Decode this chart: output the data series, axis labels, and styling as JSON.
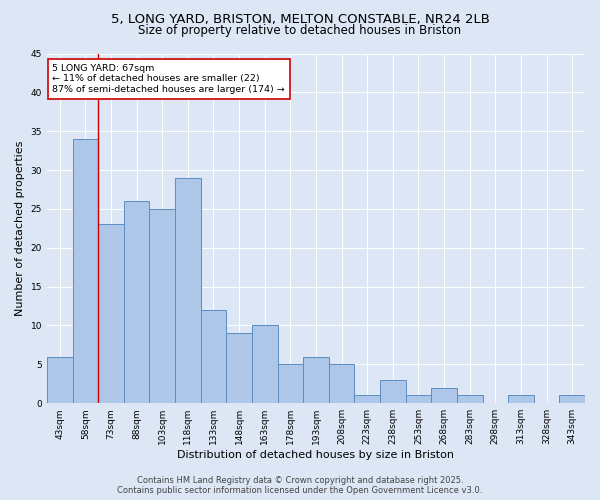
{
  "title_line1": "5, LONG YARD, BRISTON, MELTON CONSTABLE, NR24 2LB",
  "title_line2": "Size of property relative to detached houses in Briston",
  "xlabel": "Distribution of detached houses by size in Briston",
  "ylabel": "Number of detached properties",
  "categories": [
    "43sqm",
    "58sqm",
    "73sqm",
    "88sqm",
    "103sqm",
    "118sqm",
    "133sqm",
    "148sqm",
    "163sqm",
    "178sqm",
    "193sqm",
    "208sqm",
    "223sqm",
    "238sqm",
    "253sqm",
    "268sqm",
    "283sqm",
    "298sqm",
    "313sqm",
    "328sqm",
    "343sqm"
  ],
  "values": [
    6,
    34,
    23,
    26,
    25,
    29,
    12,
    9,
    10,
    5,
    6,
    5,
    1,
    3,
    1,
    2,
    1,
    0,
    1,
    0,
    1
  ],
  "bar_color": "#aec6e8",
  "bar_edge_color": "#5a8fc2",
  "annotation_text": "5 LONG YARD: 67sqm\n← 11% of detached houses are smaller (22)\n87% of semi-detached houses are larger (174) →",
  "vline_index": 1.5,
  "vline_color": "#cc0000",
  "annotation_box_edge": "#cc0000",
  "annotation_box_face": "#ffffff",
  "ylim": [
    0,
    45
  ],
  "yticks": [
    0,
    5,
    10,
    15,
    20,
    25,
    30,
    35,
    40,
    45
  ],
  "background_color": "#dce6f5",
  "footer_line1": "Contains HM Land Registry data © Crown copyright and database right 2025.",
  "footer_line2": "Contains public sector information licensed under the Open Government Licence v3.0.",
  "title_fontsize": 9.5,
  "subtitle_fontsize": 8.5,
  "axis_label_fontsize": 8,
  "tick_fontsize": 6.5,
  "annotation_fontsize": 6.8,
  "footer_fontsize": 6
}
